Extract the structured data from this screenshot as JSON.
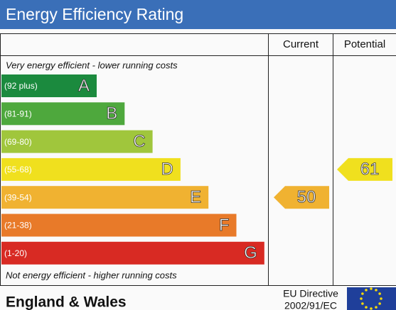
{
  "title": "Energy Efficiency Rating",
  "columns": [
    "Current",
    "Potential"
  ],
  "top_note": "Very energy efficient - lower running costs",
  "bottom_note": "Not energy efficient - higher running costs",
  "bands": [
    {
      "range": "(92 plus)",
      "letter": "A",
      "color": "#1b8a3e"
    },
    {
      "range": "(81-91)",
      "letter": "B",
      "color": "#4ea83d"
    },
    {
      "range": "(69-80)",
      "letter": "C",
      "color": "#a0c63c"
    },
    {
      "range": "(55-68)",
      "letter": "D",
      "color": "#f0e01e"
    },
    {
      "range": "(39-54)",
      "letter": "E",
      "color": "#f0b231"
    },
    {
      "range": "(21-38)",
      "letter": "F",
      "color": "#e87a29"
    },
    {
      "range": "(1-20)",
      "letter": "G",
      "color": "#d82a23"
    }
  ],
  "current": {
    "value": 50,
    "color": "#f0b231"
  },
  "potential": {
    "value": 61,
    "color": "#f0e01e"
  },
  "footer": {
    "region": "England & Wales",
    "directive": "EU Directive",
    "directive_code": "2002/91/EC"
  }
}
